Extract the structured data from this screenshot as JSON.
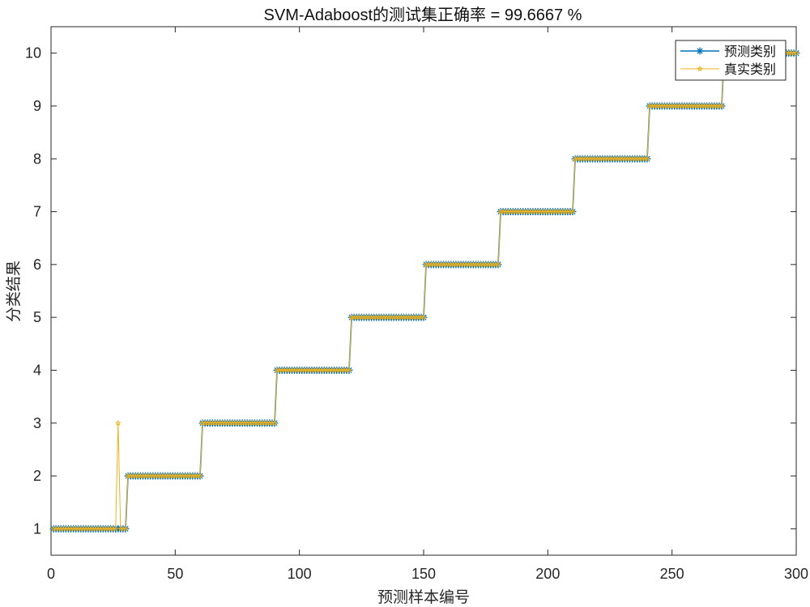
{
  "chart_data": {
    "type": "line",
    "title": "SVM-Adaboost的测试集正确率 = 99.6667 %",
    "xlabel": "预测样本编号",
    "ylabel": "分类结果",
    "xlim": [
      0,
      300
    ],
    "ylim": [
      0.5,
      10.5
    ],
    "xticks": [
      0,
      50,
      100,
      150,
      200,
      250,
      300
    ],
    "yticks": [
      1,
      2,
      3,
      4,
      5,
      6,
      7,
      8,
      9,
      10
    ],
    "grid": false,
    "legend_position": "top-right",
    "samples_per_class": 30,
    "num_classes": 10,
    "series": [
      {
        "name": "预测类别",
        "color": "#0072BD",
        "marker": "asterisk",
        "misclassified": []
      },
      {
        "name": "真实类别",
        "color": "#EDB120",
        "marker": "star",
        "misclassified": [
          {
            "sample": 27,
            "value": 3
          }
        ]
      }
    ]
  }
}
